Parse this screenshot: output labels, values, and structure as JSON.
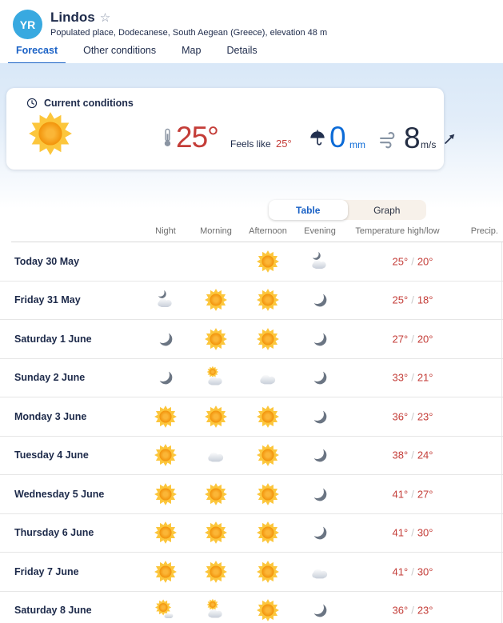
{
  "header": {
    "logo_text": "YR",
    "title": "Lindos",
    "subtitle": "Populated place, Dodecanese, South Aegean (Greece), elevation 48 m"
  },
  "tabs": [
    {
      "label": "Forecast",
      "active": true
    },
    {
      "label": "Other conditions",
      "active": false
    },
    {
      "label": "Map",
      "active": false
    },
    {
      "label": "Details",
      "active": false
    }
  ],
  "current": {
    "title": "Current conditions",
    "weather_icon": "clearsky_day",
    "temperature": "25°",
    "feels_like_label": "Feels like",
    "feels_like_value": "25°",
    "precipitation_value": "0",
    "precipitation_unit": "mm",
    "wind_value": "8",
    "wind_unit": "m/s",
    "wind_direction": "northeast"
  },
  "view_toggle": [
    {
      "label": "Table",
      "active": true
    },
    {
      "label": "Graph",
      "active": false
    }
  ],
  "table": {
    "columns": [
      "Night",
      "Morning",
      "Afternoon",
      "Evening",
      "Temperature high/low",
      "Precip."
    ],
    "rows": [
      {
        "day": "Today 30 May",
        "night": null,
        "morning": null,
        "afternoon": "clearsky_day",
        "evening": "partlycloudy_night",
        "high": "25°",
        "low": "20°",
        "precip": ""
      },
      {
        "day": "Friday 31 May",
        "night": "partlycloudy_night",
        "morning": "clearsky_day",
        "afternoon": "clearsky_day",
        "evening": "clearsky_night",
        "high": "25°",
        "low": "18°",
        "precip": ""
      },
      {
        "day": "Saturday 1 June",
        "night": "clearsky_night",
        "morning": "clearsky_day",
        "afternoon": "clearsky_day",
        "evening": "clearsky_night",
        "high": "27°",
        "low": "20°",
        "precip": ""
      },
      {
        "day": "Sunday 2 June",
        "night": "clearsky_night",
        "morning": "partlycloudy_day",
        "afternoon": "cloudy",
        "evening": "clearsky_night",
        "high": "33°",
        "low": "21°",
        "precip": ""
      },
      {
        "day": "Monday 3 June",
        "night": "clearsky_day",
        "morning": "clearsky_day",
        "afternoon": "clearsky_day",
        "evening": "clearsky_night",
        "high": "36°",
        "low": "23°",
        "precip": ""
      },
      {
        "day": "Tuesday 4 June",
        "night": "clearsky_day",
        "morning": "cloudy",
        "afternoon": "clearsky_day",
        "evening": "clearsky_night",
        "high": "38°",
        "low": "24°",
        "precip": ""
      },
      {
        "day": "Wednesday 5 June",
        "night": "clearsky_day",
        "morning": "clearsky_day",
        "afternoon": "clearsky_day",
        "evening": "clearsky_night",
        "high": "41°",
        "low": "27°",
        "precip": ""
      },
      {
        "day": "Thursday 6 June",
        "night": "clearsky_day",
        "morning": "clearsky_day",
        "afternoon": "clearsky_day",
        "evening": "clearsky_night",
        "high": "41°",
        "low": "30°",
        "precip": ""
      },
      {
        "day": "Friday 7 June",
        "night": "clearsky_day",
        "morning": "clearsky_day",
        "afternoon": "clearsky_day",
        "evening": "cloudy",
        "high": "41°",
        "low": "30°",
        "precip": ""
      },
      {
        "day": "Saturday 8 June",
        "night": "fair_day",
        "morning": "partlycloudy_day",
        "afternoon": "clearsky_day",
        "evening": "clearsky_night",
        "high": "36°",
        "low": "23°",
        "precip": ""
      }
    ]
  },
  "colors": {
    "accent_blue": "#1b62c6",
    "temp_red": "#c43d38",
    "precip_blue": "#0c6bd7",
    "logo_blue": "#38a9e0",
    "hero_blue": "#d9e8f8"
  }
}
